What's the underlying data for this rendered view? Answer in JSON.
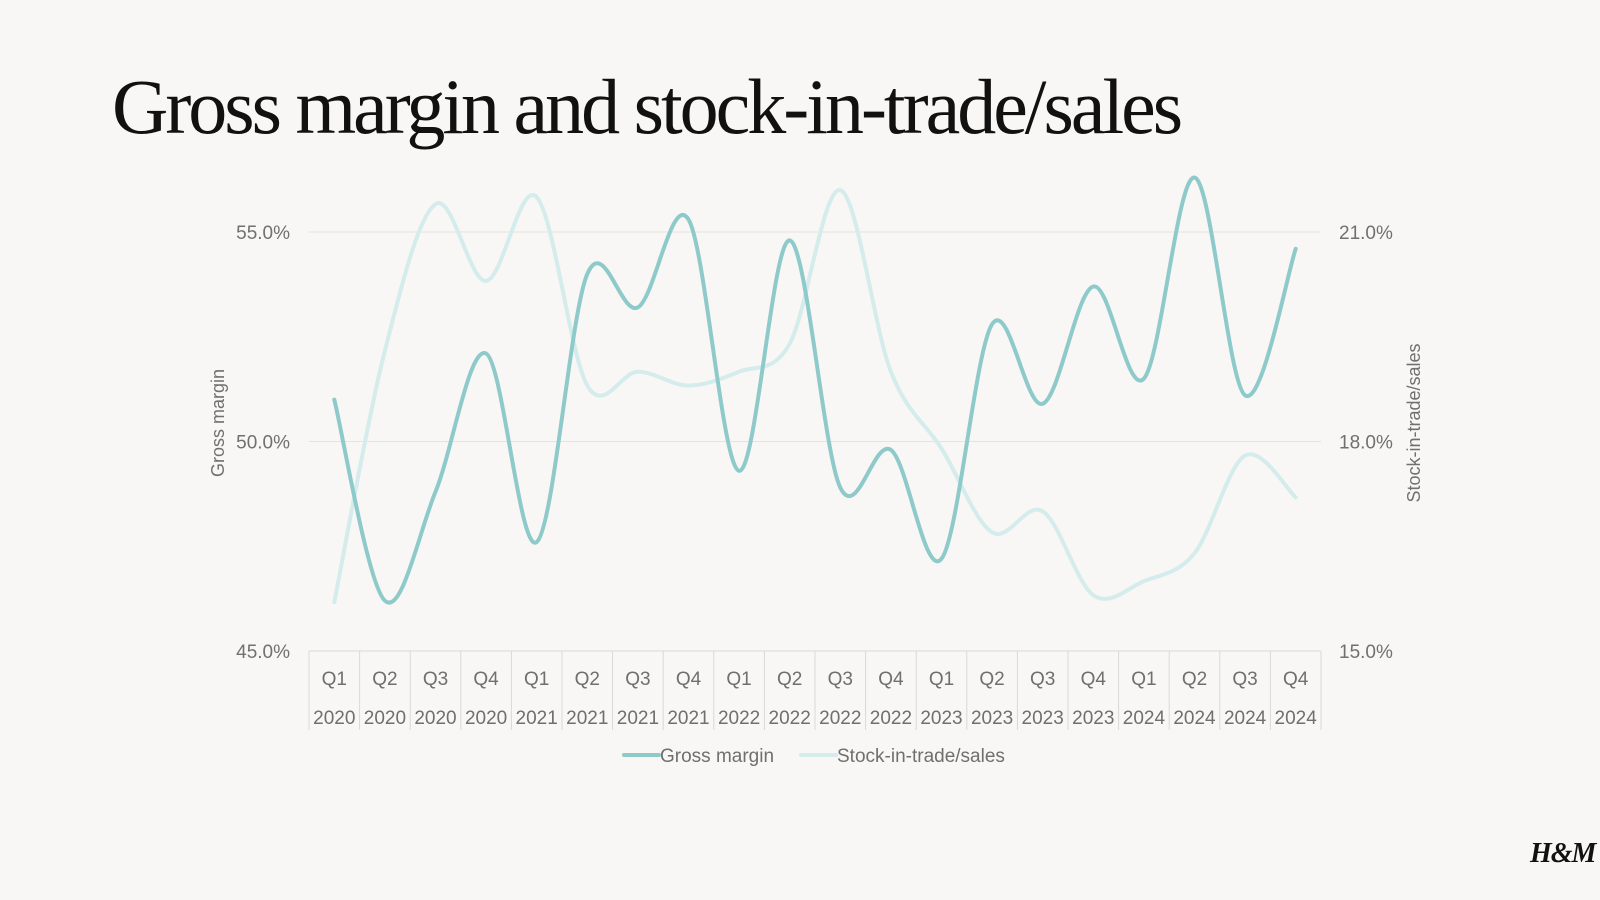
{
  "page": {
    "title": "Gross margin and stock-in-trade/sales",
    "logo_text": "H&M"
  },
  "chart_data": {
    "type": "line",
    "title": "Gross margin and stock-in-trade/sales",
    "categories": [
      [
        "Q1",
        "2020"
      ],
      [
        "Q2",
        "2020"
      ],
      [
        "Q3",
        "2020"
      ],
      [
        "Q4",
        "2020"
      ],
      [
        "Q1",
        "2021"
      ],
      [
        "Q2",
        "2021"
      ],
      [
        "Q3",
        "2021"
      ],
      [
        "Q4",
        "2021"
      ],
      [
        "Q1",
        "2022"
      ],
      [
        "Q2",
        "2022"
      ],
      [
        "Q3",
        "2022"
      ],
      [
        "Q4",
        "2022"
      ],
      [
        "Q1",
        "2023"
      ],
      [
        "Q2",
        "2023"
      ],
      [
        "Q3",
        "2023"
      ],
      [
        "Q4",
        "2023"
      ],
      [
        "Q1",
        "2024"
      ],
      [
        "Q2",
        "2024"
      ],
      [
        "Q3",
        "2024"
      ],
      [
        "Q4",
        "2024"
      ]
    ],
    "y_left": {
      "label": "Gross margin",
      "range": [
        45,
        55
      ],
      "ticks": [
        45,
        50,
        55
      ],
      "tick_labels": [
        "45.0%",
        "50.0%",
        "55.0%"
      ]
    },
    "y_right": {
      "label": "Stock-in-trade/sales",
      "range": [
        15,
        21
      ],
      "ticks": [
        15,
        18,
        21
      ],
      "tick_labels": [
        "15.0%",
        "18.0%",
        "21.0%"
      ]
    },
    "series": [
      {
        "name": "Gross margin",
        "axis": "left",
        "color": "#8fcacb",
        "values": [
          51.0,
          46.2,
          48.8,
          52.1,
          47.6,
          54.0,
          53.2,
          55.3,
          49.3,
          54.8,
          48.9,
          49.8,
          47.2,
          52.8,
          50.9,
          53.7,
          51.5,
          56.3,
          51.1,
          54.6
        ]
      },
      {
        "name": "Stock-in-trade/sales",
        "axis": "right",
        "color": "#d4eceb",
        "values": [
          15.7,
          19.3,
          21.4,
          20.3,
          21.5,
          18.8,
          19.0,
          18.8,
          19.0,
          19.4,
          21.6,
          19.0,
          17.9,
          16.7,
          17.0,
          15.8,
          16.0,
          16.4,
          17.8,
          17.2
        ]
      }
    ],
    "legend_position": "bottom"
  }
}
